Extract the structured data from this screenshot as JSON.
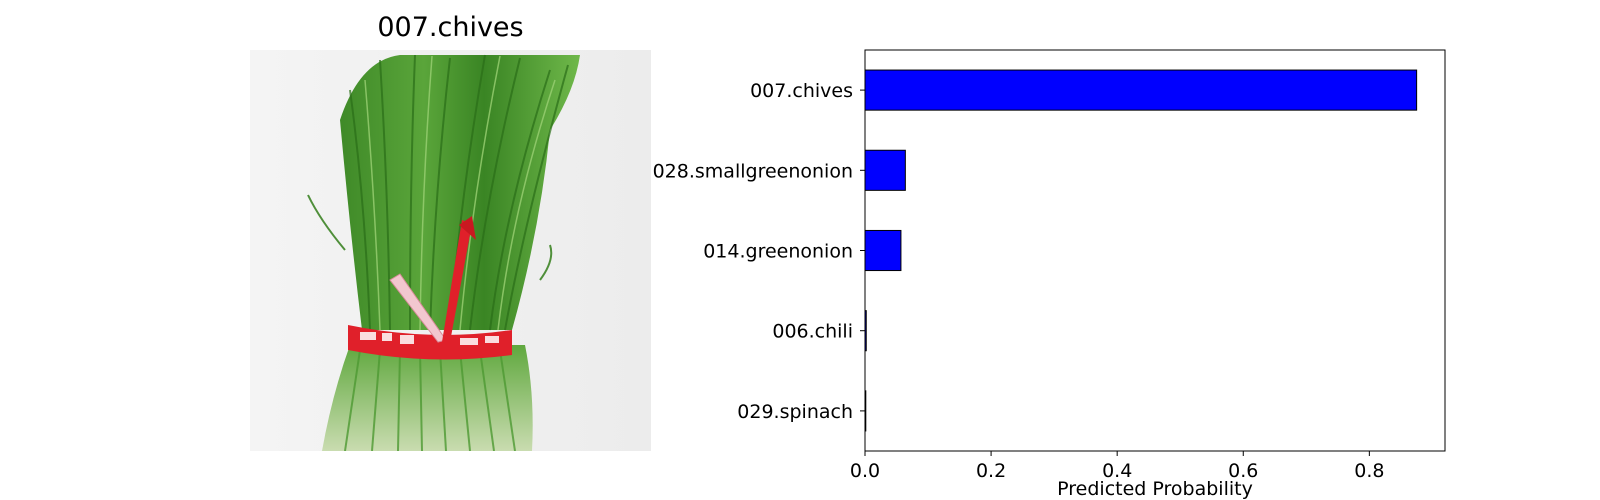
{
  "image_panel": {
    "title": "007.chives",
    "photo_subject": "bundle of green chives tied with red ribbon"
  },
  "colors": {
    "bar_fill": "#0000ff",
    "bar_edge": "#000000",
    "ribbon": "#e0202a",
    "chive_dark": "#2f7a1f",
    "chive_light": "#7cc25a"
  },
  "chart_data": {
    "type": "bar",
    "orientation": "horizontal",
    "categories": [
      "007.chives",
      "028.smallgreenonion",
      "014.greenonion",
      "006.chili",
      "029.spinach"
    ],
    "values": [
      0.875,
      0.064,
      0.057,
      0.002,
      0.0005
    ],
    "title": "",
    "xlabel": "Predicted Probability",
    "ylabel": "",
    "xlim": [
      0,
      0.92
    ],
    "xticks": [
      0.0,
      0.2,
      0.4,
      0.6,
      0.8
    ],
    "xtick_labels": [
      "0.0",
      "0.2",
      "0.4",
      "0.6",
      "0.8"
    ],
    "grid": false,
    "legend": "none"
  }
}
